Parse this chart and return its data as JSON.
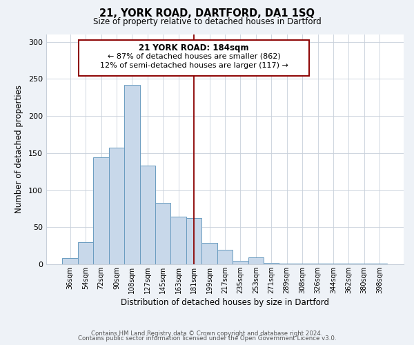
{
  "title": "21, YORK ROAD, DARTFORD, DA1 1SQ",
  "subtitle": "Size of property relative to detached houses in Dartford",
  "xlabel": "Distribution of detached houses by size in Dartford",
  "ylabel": "Number of detached properties",
  "footer_line1": "Contains HM Land Registry data © Crown copyright and database right 2024.",
  "footer_line2": "Contains public sector information licensed under the Open Government Licence v3.0.",
  "categories": [
    "36sqm",
    "54sqm",
    "72sqm",
    "90sqm",
    "108sqm",
    "127sqm",
    "145sqm",
    "163sqm",
    "181sqm",
    "199sqm",
    "217sqm",
    "235sqm",
    "253sqm",
    "271sqm",
    "289sqm",
    "308sqm",
    "326sqm",
    "344sqm",
    "362sqm",
    "380sqm",
    "398sqm"
  ],
  "values": [
    8,
    30,
    144,
    157,
    242,
    133,
    83,
    64,
    62,
    29,
    19,
    5,
    9,
    2,
    1,
    1,
    1,
    1,
    1,
    1,
    1
  ],
  "bar_color": "#c8d8ea",
  "bar_edge_color": "#6a9cc0",
  "vline_color": "#8b0000",
  "annotation_title": "21 YORK ROAD: 184sqm",
  "annotation_line1": "← 87% of detached houses are smaller (862)",
  "annotation_line2": "12% of semi-detached houses are larger (117) →",
  "annotation_box_color": "#ffffff",
  "annotation_box_edge": "#8b0000",
  "ylim": [
    0,
    310
  ],
  "yticks": [
    0,
    50,
    100,
    150,
    200,
    250,
    300
  ],
  "bg_color": "#eef2f7",
  "plot_bg_color": "#ffffff",
  "grid_color": "#c8d0da"
}
